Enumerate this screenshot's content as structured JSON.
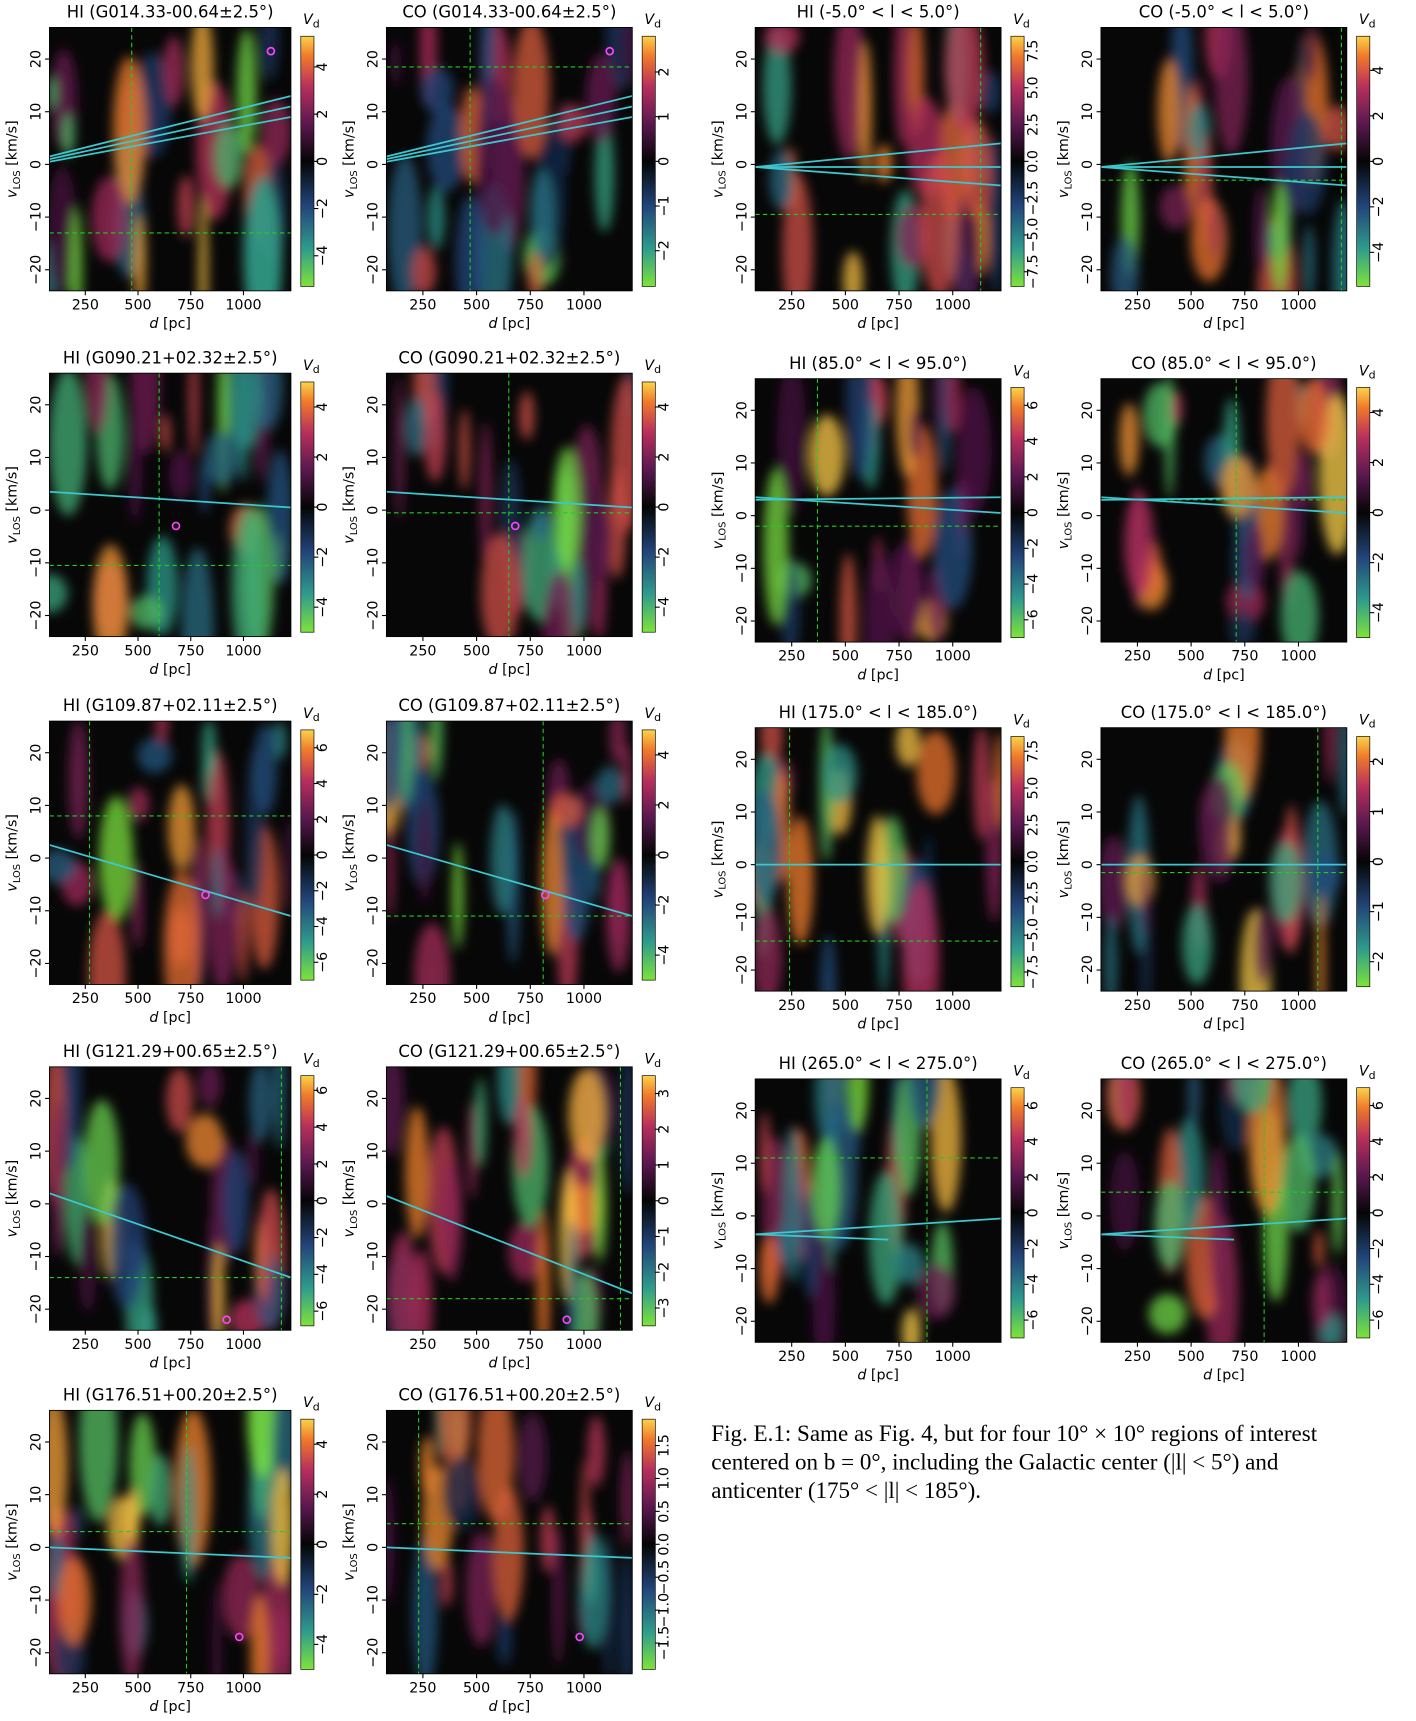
{
  "chart_data": {
    "type": "heatmap",
    "xlabel_var": "d",
    "xlabel_unit": " [pc]",
    "ylabel_var": "v",
    "ylabel_sub": "LOS",
    "ylabel_unit": " [km/s]",
    "cbar_var": "V",
    "cbar_sub": "d",
    "xlim": [
      80,
      1225
    ],
    "xticks": [
      250,
      500,
      750,
      1000
    ],
    "ylim": [
      -24,
      26
    ],
    "yticks": [
      {
        "value": -20,
        "label": "−20"
      },
      {
        "value": -10,
        "label": "−10"
      },
      0,
      10,
      20
    ],
    "panels": [
      {
        "title": "HI (G014.33-00.64±2.5°)",
        "clim": [
          -5.3,
          5.3
        ],
        "cticks": [
          {
            "value": -4,
            "label": "−4"
          },
          {
            "value": -2,
            "label": "−2"
          },
          0,
          2,
          4
        ],
        "crosshair": [
          470,
          -13
        ],
        "lines": [
          [
            [
              80,
              1.5
            ],
            [
              1225,
              13
            ]
          ],
          [
            [
              80,
              1
            ],
            [
              1225,
              11
            ]
          ],
          [
            [
              80,
              0.5
            ],
            [
              1225,
              9
            ]
          ]
        ],
        "marker": [
          1130,
          21.5
        ]
      },
      {
        "title": "CO (G014.33-00.64±2.5°)",
        "clim": [
          -2.8,
          2.8
        ],
        "cticks": [
          {
            "value": -2,
            "label": "−2"
          },
          {
            "value": -1,
            "label": "−1"
          },
          0,
          1,
          2
        ],
        "crosshair": [
          470,
          18.5
        ],
        "lines": [
          [
            [
              80,
              1.5
            ],
            [
              1225,
              13
            ]
          ],
          [
            [
              80,
              1
            ],
            [
              1225,
              11
            ]
          ],
          [
            [
              80,
              0.5
            ],
            [
              1225,
              9
            ]
          ]
        ],
        "marker": [
          1120,
          21.5
        ]
      },
      {
        "title": "HI (G090.21+02.32±2.5°)",
        "clim": [
          -5,
          5
        ],
        "cticks": [
          {
            "value": -4,
            "label": "−4"
          },
          {
            "value": -2,
            "label": "−2"
          },
          0,
          2,
          4
        ],
        "crosshair": [
          600,
          -10.5
        ],
        "lines": [
          [
            [
              80,
              3.5
            ],
            [
              1225,
              0.5
            ]
          ]
        ],
        "marker": [
          680,
          -3
        ]
      },
      {
        "title": "CO (G090.21+02.32±2.5°)",
        "clim": [
          -5,
          5
        ],
        "cticks": [
          {
            "value": -4,
            "label": "−4"
          },
          {
            "value": -2,
            "label": "−2"
          },
          0,
          2,
          4
        ],
        "crosshair": [
          650,
          -0.5
        ],
        "lines": [
          [
            [
              80,
              3.5
            ],
            [
              1225,
              0.5
            ]
          ]
        ],
        "marker": [
          680,
          -3
        ]
      },
      {
        "title": "HI (G109.87+02.11±2.5°)",
        "clim": [
          -7,
          7
        ],
        "cticks": [
          {
            "value": -6,
            "label": "−6"
          },
          {
            "value": -4,
            "label": "−4"
          },
          {
            "value": -2,
            "label": "−2"
          },
          0,
          2,
          4,
          6
        ],
        "crosshair": [
          270,
          8
        ],
        "lines": [
          [
            [
              80,
              2.5
            ],
            [
              1225,
              -11
            ]
          ]
        ],
        "marker": [
          820,
          -7
        ]
      },
      {
        "title": "CO (G109.87+02.11±2.5°)",
        "clim": [
          -5,
          5
        ],
        "cticks": [
          {
            "value": -4,
            "label": "−4"
          },
          {
            "value": -2,
            "label": "−2"
          },
          0,
          2,
          4
        ],
        "crosshair": [
          810,
          -11
        ],
        "lines": [
          [
            [
              80,
              2.5
            ],
            [
              1225,
              -11
            ]
          ]
        ],
        "marker": [
          820,
          -7
        ]
      },
      {
        "title": "HI (G121.29+00.65±2.5°)",
        "clim": [
          -6.8,
          6.8
        ],
        "cticks": [
          {
            "value": -6,
            "label": "−6"
          },
          {
            "value": -4,
            "label": "−4"
          },
          {
            "value": -2,
            "label": "−2"
          },
          0,
          2,
          4,
          6
        ],
        "crosshair": [
          1180,
          -14
        ],
        "lines": [
          [
            [
              80,
              2
            ],
            [
              1225,
              -14
            ]
          ]
        ],
        "marker": [
          920,
          -22
        ]
      },
      {
        "title": "CO (G121.29+00.65±2.5°)",
        "clim": [
          -3.5,
          3.5
        ],
        "cticks": [
          {
            "value": -3,
            "label": "−3"
          },
          {
            "value": -2,
            "label": "−2"
          },
          {
            "value": -1,
            "label": "−1"
          },
          0,
          1,
          2,
          3
        ],
        "crosshair": [
          1170,
          -18
        ],
        "lines": [
          [
            [
              80,
              1.5
            ],
            [
              1225,
              -17
            ]
          ]
        ],
        "marker": [
          920,
          -22
        ]
      },
      {
        "title": "HI (G176.51+00.20±2.5°)",
        "clim": [
          -5,
          5
        ],
        "cticks": [
          {
            "value": -4,
            "label": "−4"
          },
          {
            "value": -2,
            "label": "−2"
          },
          0,
          2,
          4
        ],
        "crosshair": [
          730,
          3
        ],
        "lines": [
          [
            [
              80,
              0
            ],
            [
              1225,
              -2
            ]
          ]
        ],
        "marker": [
          980,
          -17
        ]
      },
      {
        "title": "CO (G176.51+00.20±2.5°)",
        "clim": [
          -1.9,
          1.9
        ],
        "cticks": [
          {
            "value": -1.5,
            "label": "−1.5"
          },
          {
            "value": -1,
            "label": "−1.0"
          },
          {
            "value": -0.5,
            "label": "−0.5"
          },
          {
            "value": 0,
            "label": "0.0"
          },
          0.5,
          {
            "value": 1,
            "label": "1.0"
          },
          1.5
        ],
        "crosshair": [
          230,
          4.5
        ],
        "lines": [
          [
            [
              80,
              0
            ],
            [
              1225,
              -2
            ]
          ]
        ],
        "marker": [
          980,
          -17
        ]
      },
      {
        "title": "HI (-5.0° < l < 5.0°)",
        "clim": [
          -8.5,
          8.5
        ],
        "cticks": [
          {
            "value": -7.5,
            "label": "−7.5"
          },
          {
            "value": -5,
            "label": "−5.0"
          },
          {
            "value": -2.5,
            "label": "−2.5"
          },
          {
            "value": 0,
            "label": "0.0"
          },
          2.5,
          {
            "value": 5,
            "label": "5.0"
          },
          7.5
        ],
        "crosshair": [
          1130,
          -9.5
        ],
        "lines": [
          [
            [
              80,
              -0.5
            ],
            [
              1225,
              4
            ]
          ],
          [
            [
              80,
              -0.5
            ],
            [
              1225,
              -0.5
            ]
          ],
          [
            [
              80,
              -0.5
            ],
            [
              1225,
              -4
            ]
          ]
        ]
      },
      {
        "title": "CO (-5.0° < l < 5.0°)",
        "clim": [
          -5.5,
          5.5
        ],
        "cticks": [
          {
            "value": -4,
            "label": "−4"
          },
          {
            "value": -2,
            "label": "−2"
          },
          0,
          2,
          4
        ],
        "crosshair": [
          1200,
          -3
        ],
        "lines": [
          [
            [
              80,
              -0.5
            ],
            [
              1225,
              4
            ]
          ],
          [
            [
              80,
              -0.5
            ],
            [
              1225,
              -0.5
            ]
          ],
          [
            [
              80,
              -0.5
            ],
            [
              1225,
              -4
            ]
          ]
        ]
      },
      {
        "title": "HI (85.0° < l < 95.0°)",
        "clim": [
          -7,
          7
        ],
        "cticks": [
          {
            "value": -6,
            "label": "−6"
          },
          {
            "value": -4,
            "label": "−4"
          },
          {
            "value": -2,
            "label": "−2"
          },
          0,
          2,
          4,
          6
        ],
        "crosshair": [
          370,
          -2
        ],
        "lines": [
          [
            [
              80,
              3.5
            ],
            [
              1225,
              0.5
            ]
          ],
          [
            [
              80,
              3
            ],
            [
              1225,
              3.5
            ]
          ]
        ]
      },
      {
        "title": "CO (85.0° < l < 95.0°)",
        "clim": [
          -5,
          5
        ],
        "cticks": [
          {
            "value": -4,
            "label": "−4"
          },
          {
            "value": -2,
            "label": "−2"
          },
          0,
          2,
          4
        ],
        "crosshair": [
          710,
          3
        ],
        "lines": [
          [
            [
              80,
              3.5
            ],
            [
              1225,
              0.5
            ]
          ],
          [
            [
              80,
              3
            ],
            [
              1225,
              3.5
            ]
          ]
        ]
      },
      {
        "title": "HI (175.0° < l < 185.0°)",
        "clim": [
          -8.5,
          8.5
        ],
        "cticks": [
          {
            "value": -7.5,
            "label": "−7.5"
          },
          {
            "value": -5,
            "label": "−5.0"
          },
          {
            "value": -2.5,
            "label": "−2.5"
          },
          {
            "value": 0,
            "label": "0.0"
          },
          2.5,
          {
            "value": 5,
            "label": "5.0"
          },
          7.5
        ],
        "crosshair": [
          240,
          -14.5
        ],
        "lines": [
          [
            [
              80,
              0
            ],
            [
              1225,
              0
            ]
          ]
        ]
      },
      {
        "title": "CO (175.0° < l < 185.0°)",
        "clim": [
          -2.5,
          2.5
        ],
        "cticks": [
          {
            "value": -2,
            "label": "−2"
          },
          {
            "value": -1,
            "label": "−1"
          },
          0,
          1,
          2
        ],
        "crosshair": [
          1090,
          -1.5
        ],
        "lines": [
          [
            [
              80,
              0
            ],
            [
              1225,
              0
            ]
          ]
        ]
      },
      {
        "title": "HI (265.0° < l < 275.0°)",
        "clim": [
          -7,
          7
        ],
        "cticks": [
          {
            "value": -6,
            "label": "−6"
          },
          {
            "value": -4,
            "label": "−4"
          },
          {
            "value": -2,
            "label": "−2"
          },
          0,
          2,
          4,
          6
        ],
        "crosshair": [
          880,
          11
        ],
        "lines": [
          [
            [
              80,
              -3.5
            ],
            [
              1225,
              -0.5
            ]
          ],
          [
            [
              80,
              -3.5
            ],
            [
              700,
              -4.5
            ]
          ]
        ]
      },
      {
        "title": "CO (265.0° < l < 275.0°)",
        "clim": [
          -7,
          7
        ],
        "cticks": [
          {
            "value": -6,
            "label": "−6"
          },
          {
            "value": -4,
            "label": "−4"
          },
          {
            "value": -2,
            "label": "−2"
          },
          0,
          2,
          4,
          6
        ],
        "crosshair": [
          840,
          4.5
        ],
        "lines": [
          [
            [
              80,
              -3.5
            ],
            [
              1225,
              -0.5
            ]
          ],
          [
            [
              80,
              -3.5
            ],
            [
              700,
              -4.5
            ]
          ]
        ]
      }
    ]
  },
  "caption": [
    "Fig. E.1: Same as Fig. 4, but for four 10° × 10° regions of interest",
    "centered on b = 0°, including the Galactic center (|l| < 5°) and",
    "anticenter (175° < |l| < 185°)."
  ]
}
